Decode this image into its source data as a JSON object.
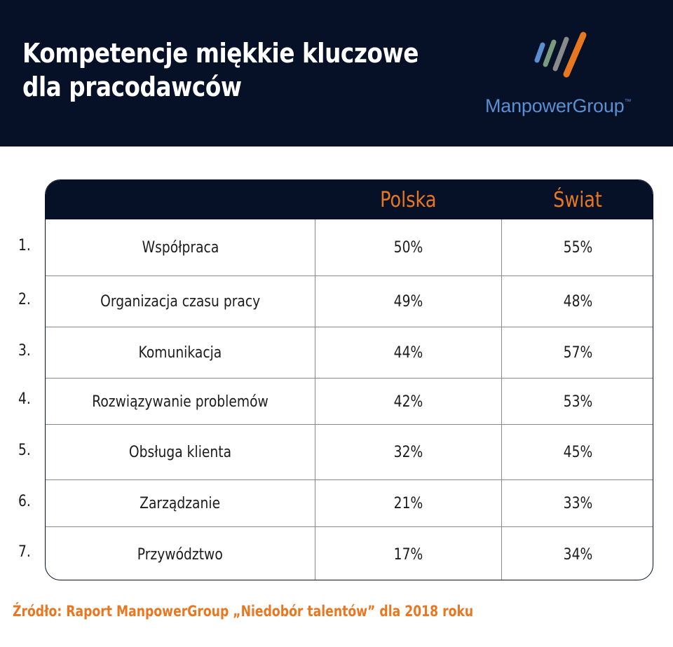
{
  "header": {
    "title_line1": "Kompetencje miękkie kluczowe",
    "title_line2": "dla pracodawców",
    "logo_text": "ManpowerGroup",
    "logo_tm": "™"
  },
  "colors": {
    "navy": "#061127",
    "orange": "#e87722",
    "logo_blue": "#5b8fd0",
    "logo_green": "#7a9a7e",
    "logo_gray": "#8a8a8a"
  },
  "chart_data": {
    "type": "table",
    "title": "Kompetencje miękkie kluczowe dla pracodawców",
    "columns": [
      "",
      "Polska",
      "Świat"
    ],
    "rows": [
      {
        "num": "1.",
        "label": "Współpraca",
        "polska": "50%",
        "swiat": "55%"
      },
      {
        "num": "2.",
        "label": "Organizacja czasu pracy",
        "polska": "49%",
        "swiat": "48%"
      },
      {
        "num": "3.",
        "label": "Komunikacja",
        "polska": "44%",
        "swiat": "57%"
      },
      {
        "num": "4.",
        "label": "Rozwiązywanie problemów",
        "polska": "42%",
        "swiat": "53%"
      },
      {
        "num": "5.",
        "label": "Obsługa klienta",
        "polska": "32%",
        "swiat": "45%"
      },
      {
        "num": "6.",
        "label": "Zarządzanie",
        "polska": "21%",
        "swiat": "33%"
      },
      {
        "num": "7.",
        "label": "Przywództwo",
        "polska": "17%",
        "swiat": "34%"
      }
    ]
  },
  "source": "Źródło: Raport ManpowerGroup „Niedobór talentów” dla 2018 roku"
}
